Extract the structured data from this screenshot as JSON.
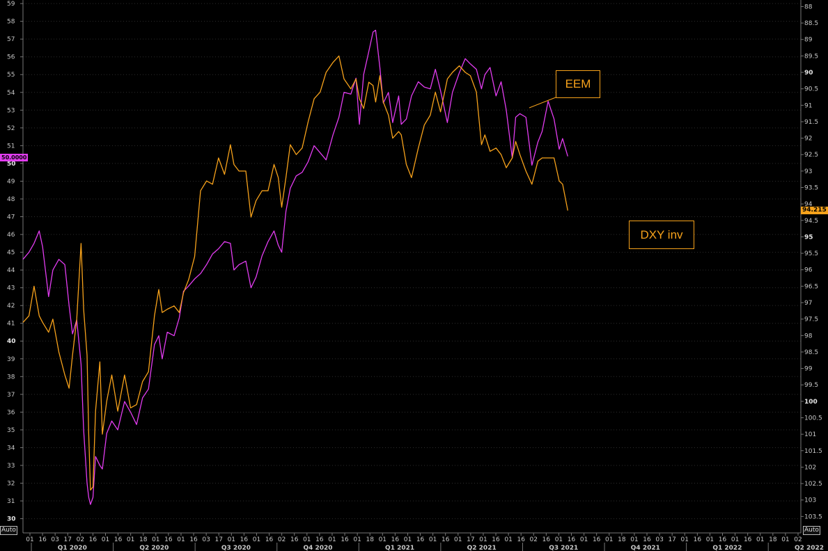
{
  "chart_data": {
    "type": "line",
    "x_start": "2020-01-01",
    "x_end": "2022-06-30",
    "left_axis": {
      "ylim": [
        29.2,
        59.2
      ],
      "ticks": [
        59,
        58,
        57,
        56,
        55,
        54,
        53,
        52,
        51,
        50,
        49,
        48,
        47,
        46,
        45,
        44,
        43,
        42,
        41,
        40,
        39,
        38,
        37,
        36,
        35,
        34,
        33,
        32,
        31,
        30
      ],
      "bold_ticks": [
        50,
        40,
        30
      ]
    },
    "right_axis": {
      "ylim": [
        87.8,
        104.0
      ],
      "inverted": true,
      "ticks": [
        "88",
        "88.5",
        "89",
        "89.5",
        "90",
        "90.5",
        "91",
        "91.5",
        "92",
        "92.5",
        "93",
        "93.5",
        "94",
        "94.5",
        "95",
        "95.5",
        "96",
        "96.5",
        "97",
        "97.5",
        "98",
        "98.5",
        "99",
        "99.5",
        "100",
        "100.5",
        "101",
        "101.5",
        "102",
        "102.5",
        "103",
        "103.5"
      ],
      "bold_ticks": [
        "90",
        "95",
        "100"
      ]
    },
    "x_day_labels": [
      "01",
      "16",
      "03",
      "17",
      "02",
      "16",
      "01",
      "16",
      "01",
      "18",
      "01",
      "16",
      "01",
      "16",
      "03",
      "17",
      "01",
      "16",
      "01",
      "16",
      "02",
      "16",
      "01",
      "16",
      "01",
      "16",
      "01",
      "18",
      "01",
      "16",
      "01",
      "16",
      "01",
      "16",
      "01",
      "17",
      "01",
      "16",
      "01",
      "16",
      "02",
      "16",
      "01",
      "16",
      "01",
      "16",
      "01",
      "18",
      "01",
      "16",
      "03",
      "17",
      "01",
      "16",
      "01",
      "16",
      "01",
      "16",
      "01",
      "18",
      "01",
      "02"
    ],
    "quarters": [
      "Q1 2020",
      "Q2 2020",
      "Q3 2020",
      "Q4 2020",
      "Q1 2021",
      "Q2 2021",
      "Q3 2021",
      "Q4 2021",
      "Q1 2022",
      "Q2 2022"
    ],
    "series": [
      {
        "name": "EEM",
        "axis": "left",
        "color": "#e23cf0",
        "points": [
          [
            "2020-01-01",
            44.6
          ],
          [
            "2020-01-08",
            45.0
          ],
          [
            "2020-01-14",
            45.5
          ],
          [
            "2020-01-20",
            46.2
          ],
          [
            "2020-01-24",
            45.3
          ],
          [
            "2020-01-31",
            42.5
          ],
          [
            "2020-02-05",
            44.0
          ],
          [
            "2020-02-12",
            44.6
          ],
          [
            "2020-02-19",
            44.3
          ],
          [
            "2020-02-24",
            42.0
          ],
          [
            "2020-02-28",
            40.4
          ],
          [
            "2020-03-04",
            41.2
          ],
          [
            "2020-03-09",
            38.7
          ],
          [
            "2020-03-12",
            35.0
          ],
          [
            "2020-03-16",
            32.0
          ],
          [
            "2020-03-18",
            31.2
          ],
          [
            "2020-03-20",
            30.8
          ],
          [
            "2020-03-23",
            31.2
          ],
          [
            "2020-03-26",
            33.5
          ],
          [
            "2020-03-31",
            33.0
          ],
          [
            "2020-04-03",
            32.8
          ],
          [
            "2020-04-08",
            34.8
          ],
          [
            "2020-04-14",
            35.5
          ],
          [
            "2020-04-21",
            35.0
          ],
          [
            "2020-04-29",
            36.6
          ],
          [
            "2020-05-06",
            36.0
          ],
          [
            "2020-05-13",
            35.3
          ],
          [
            "2020-05-20",
            36.8
          ],
          [
            "2020-05-27",
            37.3
          ],
          [
            "2020-06-03",
            39.8
          ],
          [
            "2020-06-08",
            40.3
          ],
          [
            "2020-06-12",
            39.0
          ],
          [
            "2020-06-18",
            40.5
          ],
          [
            "2020-06-26",
            40.3
          ],
          [
            "2020-07-02",
            41.3
          ],
          [
            "2020-07-07",
            42.8
          ],
          [
            "2020-07-13",
            43.1
          ],
          [
            "2020-07-20",
            43.5
          ],
          [
            "2020-07-27",
            43.8
          ],
          [
            "2020-08-03",
            44.3
          ],
          [
            "2020-08-10",
            44.9
          ],
          [
            "2020-08-17",
            45.2
          ],
          [
            "2020-08-24",
            45.6
          ],
          [
            "2020-08-31",
            45.5
          ],
          [
            "2020-09-04",
            44.0
          ],
          [
            "2020-09-10",
            44.3
          ],
          [
            "2020-09-18",
            44.5
          ],
          [
            "2020-09-24",
            43.0
          ],
          [
            "2020-09-30",
            43.6
          ],
          [
            "2020-10-07",
            44.8
          ],
          [
            "2020-10-14",
            45.6
          ],
          [
            "2020-10-21",
            46.2
          ],
          [
            "2020-10-26",
            45.4
          ],
          [
            "2020-10-30",
            45.0
          ],
          [
            "2020-11-04",
            47.3
          ],
          [
            "2020-11-09",
            48.6
          ],
          [
            "2020-11-16",
            49.3
          ],
          [
            "2020-11-23",
            49.5
          ],
          [
            "2020-11-30",
            50.1
          ],
          [
            "2020-12-07",
            51.0
          ],
          [
            "2020-12-14",
            50.6
          ],
          [
            "2020-12-21",
            50.2
          ],
          [
            "2020-12-29",
            51.6
          ],
          [
            "2021-01-05",
            52.6
          ],
          [
            "2021-01-11",
            54.0
          ],
          [
            "2021-01-19",
            53.9
          ],
          [
            "2021-01-25",
            54.8
          ],
          [
            "2021-01-29",
            52.2
          ],
          [
            "2021-02-03",
            55.0
          ],
          [
            "2021-02-09",
            56.3
          ],
          [
            "2021-02-14",
            57.4
          ],
          [
            "2021-02-17",
            57.5
          ],
          [
            "2021-02-22",
            55.4
          ],
          [
            "2021-02-26",
            53.4
          ],
          [
            "2021-03-04",
            54.0
          ],
          [
            "2021-03-09",
            52.3
          ],
          [
            "2021-03-16",
            53.8
          ],
          [
            "2021-03-19",
            52.2
          ],
          [
            "2021-03-25",
            52.5
          ],
          [
            "2021-03-31",
            53.8
          ],
          [
            "2021-04-08",
            54.6
          ],
          [
            "2021-04-15",
            54.3
          ],
          [
            "2021-04-22",
            54.2
          ],
          [
            "2021-04-28",
            55.3
          ],
          [
            "2021-05-04",
            54.1
          ],
          [
            "2021-05-12",
            52.3
          ],
          [
            "2021-05-18",
            54.0
          ],
          [
            "2021-05-26",
            55.1
          ],
          [
            "2021-06-02",
            55.9
          ],
          [
            "2021-06-08",
            55.6
          ],
          [
            "2021-06-15",
            55.3
          ],
          [
            "2021-06-21",
            54.2
          ],
          [
            "2021-06-25",
            55.0
          ],
          [
            "2021-07-01",
            55.4
          ],
          [
            "2021-07-08",
            53.8
          ],
          [
            "2021-07-14",
            54.6
          ],
          [
            "2021-07-20",
            53.0
          ],
          [
            "2021-07-27",
            50.3
          ],
          [
            "2021-07-31",
            52.6
          ],
          [
            "2021-08-05",
            52.8
          ],
          [
            "2021-08-12",
            52.6
          ],
          [
            "2021-08-19",
            49.9
          ],
          [
            "2021-08-26",
            51.2
          ],
          [
            "2021-08-31",
            51.8
          ],
          [
            "2021-09-07",
            53.5
          ],
          [
            "2021-09-14",
            52.5
          ],
          [
            "2021-09-20",
            50.8
          ],
          [
            "2021-09-24",
            51.4
          ],
          [
            "2021-09-30",
            50.4
          ]
        ]
      },
      {
        "name": "DXY inv",
        "axis": "right",
        "color": "#f7a21b",
        "last_value": "94.215",
        "points": [
          [
            "2020-01-01",
            97.6
          ],
          [
            "2020-01-08",
            97.4
          ],
          [
            "2020-01-14",
            96.5
          ],
          [
            "2020-01-20",
            97.4
          ],
          [
            "2020-01-24",
            97.6
          ],
          [
            "2020-01-31",
            97.9
          ],
          [
            "2020-02-05",
            97.5
          ],
          [
            "2020-02-12",
            98.5
          ],
          [
            "2020-02-19",
            99.2
          ],
          [
            "2020-02-24",
            99.6
          ],
          [
            "2020-02-28",
            98.6
          ],
          [
            "2020-03-04",
            97.5
          ],
          [
            "2020-03-09",
            95.2
          ],
          [
            "2020-03-12",
            97.2
          ],
          [
            "2020-03-16",
            98.6
          ],
          [
            "2020-03-18",
            101.0
          ],
          [
            "2020-03-20",
            102.7
          ],
          [
            "2020-03-23",
            102.6
          ],
          [
            "2020-03-26",
            100.3
          ],
          [
            "2020-03-31",
            98.8
          ],
          [
            "2020-04-03",
            101.0
          ],
          [
            "2020-04-08",
            100.0
          ],
          [
            "2020-04-14",
            99.2
          ],
          [
            "2020-04-21",
            100.3
          ],
          [
            "2020-04-29",
            99.2
          ],
          [
            "2020-05-06",
            100.2
          ],
          [
            "2020-05-13",
            100.1
          ],
          [
            "2020-05-20",
            99.4
          ],
          [
            "2020-05-27",
            99.1
          ],
          [
            "2020-06-03",
            97.4
          ],
          [
            "2020-06-08",
            96.6
          ],
          [
            "2020-06-12",
            97.3
          ],
          [
            "2020-06-18",
            97.2
          ],
          [
            "2020-06-26",
            97.1
          ],
          [
            "2020-07-02",
            97.3
          ],
          [
            "2020-07-07",
            96.7
          ],
          [
            "2020-07-13",
            96.3
          ],
          [
            "2020-07-20",
            95.6
          ],
          [
            "2020-07-27",
            93.6
          ],
          [
            "2020-08-03",
            93.3
          ],
          [
            "2020-08-10",
            93.4
          ],
          [
            "2020-08-17",
            92.6
          ],
          [
            "2020-08-24",
            93.1
          ],
          [
            "2020-08-31",
            92.2
          ],
          [
            "2020-09-04",
            92.8
          ],
          [
            "2020-09-10",
            93.0
          ],
          [
            "2020-09-18",
            93.0
          ],
          [
            "2020-09-24",
            94.4
          ],
          [
            "2020-09-30",
            93.9
          ],
          [
            "2020-10-07",
            93.6
          ],
          [
            "2020-10-14",
            93.6
          ],
          [
            "2020-10-21",
            92.8
          ],
          [
            "2020-10-26",
            93.2
          ],
          [
            "2020-10-30",
            94.1
          ],
          [
            "2020-11-04",
            93.2
          ],
          [
            "2020-11-09",
            92.2
          ],
          [
            "2020-11-16",
            92.5
          ],
          [
            "2020-11-23",
            92.3
          ],
          [
            "2020-11-30",
            91.5
          ],
          [
            "2020-12-07",
            90.8
          ],
          [
            "2020-12-14",
            90.6
          ],
          [
            "2020-12-21",
            90.0
          ],
          [
            "2020-12-29",
            89.7
          ],
          [
            "2021-01-05",
            89.5
          ],
          [
            "2021-01-11",
            90.2
          ],
          [
            "2021-01-19",
            90.5
          ],
          [
            "2021-01-25",
            90.2
          ],
          [
            "2021-01-29",
            90.8
          ],
          [
            "2021-02-03",
            91.1
          ],
          [
            "2021-02-09",
            90.3
          ],
          [
            "2021-02-14",
            90.4
          ],
          [
            "2021-02-17",
            90.9
          ],
          [
            "2021-02-22",
            90.1
          ],
          [
            "2021-02-26",
            90.9
          ],
          [
            "2021-03-04",
            91.3
          ],
          [
            "2021-03-09",
            92.0
          ],
          [
            "2021-03-16",
            91.8
          ],
          [
            "2021-03-19",
            91.9
          ],
          [
            "2021-03-25",
            92.8
          ],
          [
            "2021-03-31",
            93.2
          ],
          [
            "2021-04-08",
            92.3
          ],
          [
            "2021-04-15",
            91.6
          ],
          [
            "2021-04-22",
            91.3
          ],
          [
            "2021-04-28",
            90.6
          ],
          [
            "2021-05-04",
            91.2
          ],
          [
            "2021-05-12",
            90.2
          ],
          [
            "2021-05-18",
            90.0
          ],
          [
            "2021-05-26",
            89.8
          ],
          [
            "2021-06-02",
            90.0
          ],
          [
            "2021-06-08",
            90.1
          ],
          [
            "2021-06-15",
            90.6
          ],
          [
            "2021-06-21",
            92.2
          ],
          [
            "2021-06-25",
            91.9
          ],
          [
            "2021-07-01",
            92.4
          ],
          [
            "2021-07-08",
            92.3
          ],
          [
            "2021-07-14",
            92.5
          ],
          [
            "2021-07-20",
            92.9
          ],
          [
            "2021-07-27",
            92.6
          ],
          [
            "2021-07-31",
            92.1
          ],
          [
            "2021-08-05",
            92.5
          ],
          [
            "2021-08-12",
            93.0
          ],
          [
            "2021-08-19",
            93.4
          ],
          [
            "2021-08-26",
            92.7
          ],
          [
            "2021-08-31",
            92.6
          ],
          [
            "2021-09-07",
            92.6
          ],
          [
            "2021-09-14",
            92.6
          ],
          [
            "2021-09-20",
            93.3
          ],
          [
            "2021-09-24",
            93.4
          ],
          [
            "2021-09-30",
            94.2
          ]
        ]
      }
    ],
    "annotations": [
      "EEM",
      "DXY inv"
    ],
    "left_value_tag": "50.0000",
    "auto_label": "Auto"
  }
}
